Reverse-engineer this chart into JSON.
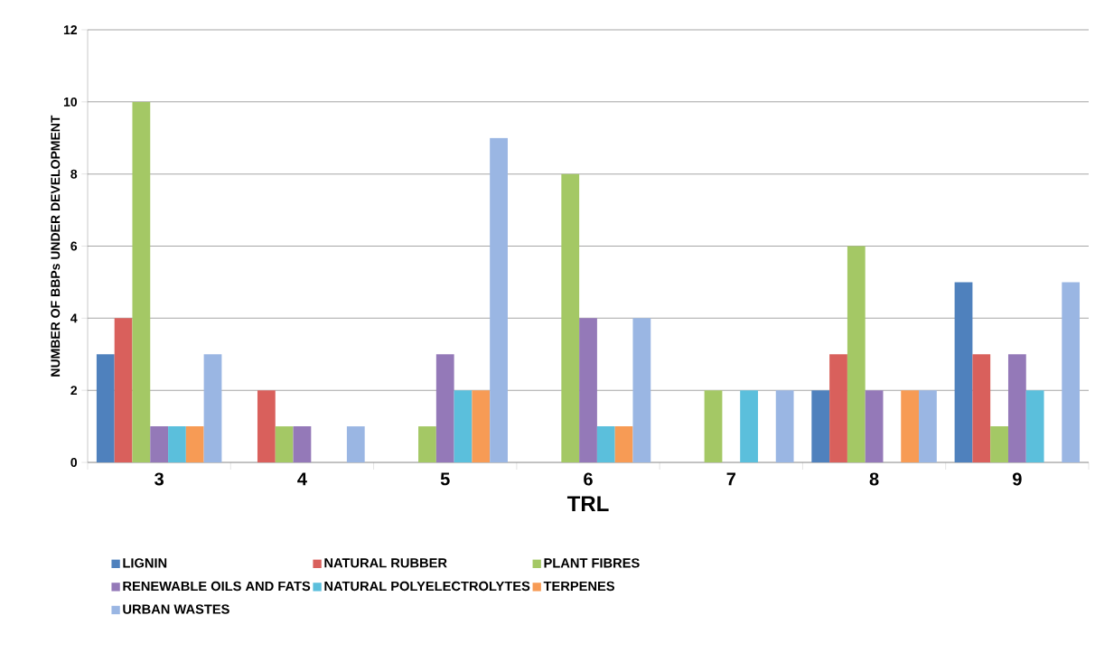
{
  "chart_data": {
    "type": "bar",
    "xlabel": "TRL",
    "ylabel": "NUMBER OF BBPs UNDER DEVELOPMENT",
    "categories": [
      "3",
      "4",
      "5",
      "6",
      "7",
      "8",
      "9"
    ],
    "series": [
      {
        "name": "LIGNIN",
        "color": "#4f81bd",
        "values": [
          3,
          0,
          0,
          0,
          0,
          2,
          5
        ]
      },
      {
        "name": "NATURAL RUBBER",
        "color": "#d9605c",
        "values": [
          4,
          2,
          0,
          0,
          0,
          3,
          3
        ]
      },
      {
        "name": "PLANT FIBRES",
        "color": "#a4c865",
        "values": [
          10,
          1,
          1,
          8,
          2,
          6,
          1
        ]
      },
      {
        "name": "RENEWABLE OILS AND FATS",
        "color": "#9479b8",
        "values": [
          1,
          1,
          3,
          4,
          0,
          2,
          3
        ]
      },
      {
        "name": "NATURAL POLYELECTROLYTES",
        "color": "#5bbfdc",
        "values": [
          1,
          0,
          2,
          1,
          2,
          0,
          2
        ]
      },
      {
        "name": "TERPENES",
        "color": "#f79b55",
        "values": [
          1,
          0,
          2,
          1,
          0,
          2,
          0
        ]
      },
      {
        "name": "URBAN WASTES",
        "color": "#9ab6e3",
        "values": [
          3,
          1,
          9,
          4,
          2,
          2,
          5
        ]
      }
    ],
    "ylim": [
      0,
      12
    ],
    "yticks": [
      0,
      2,
      4,
      6,
      8,
      10,
      12
    ],
    "grid": "y",
    "legend": "bottom"
  }
}
